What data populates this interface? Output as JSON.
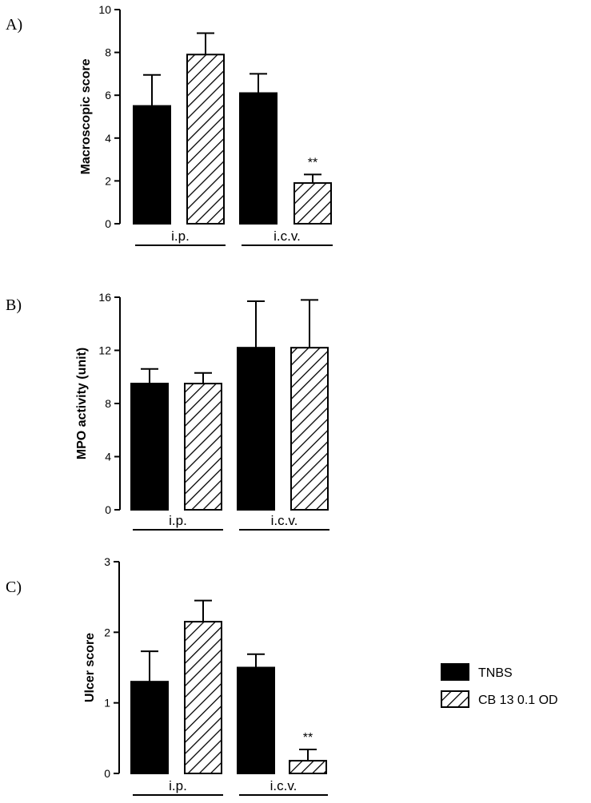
{
  "chart_data": [
    {
      "type": "bar",
      "panel_label": "A)",
      "ylabel": "Macroscopic score",
      "ylim": [
        0,
        10
      ],
      "yticks": [
        "0",
        "2",
        "4",
        "6",
        "8",
        "10"
      ],
      "groups": [
        "i.p.",
        "i.c.v."
      ],
      "series": [
        {
          "name": "TNBS",
          "values": [
            5.5,
            6.1
          ],
          "errors": [
            1.45,
            0.9
          ]
        },
        {
          "name": "CB 13 0.1 OD",
          "values": [
            7.9,
            1.9
          ],
          "errors": [
            1.0,
            0.4
          ]
        }
      ],
      "annotations": [
        {
          "text": "**",
          "group": 1,
          "series": 1
        }
      ]
    },
    {
      "type": "bar",
      "panel_label": "B)",
      "ylabel": "MPO activity (unit)",
      "ylim": [
        0,
        16
      ],
      "yticks": [
        "0",
        "4",
        "8",
        "12",
        "16"
      ],
      "groups": [
        "i.p.",
        "i.c.v."
      ],
      "series": [
        {
          "name": "TNBS",
          "values": [
            9.5,
            12.2
          ],
          "errors": [
            1.1,
            3.5
          ]
        },
        {
          "name": "CB 13 0.1 OD",
          "values": [
            9.5,
            12.2
          ],
          "errors": [
            0.8,
            3.6
          ]
        }
      ],
      "annotations": []
    },
    {
      "type": "bar",
      "panel_label": "C)",
      "ylabel": "Ulcer score",
      "ylim": [
        0,
        3
      ],
      "yticks": [
        "0",
        "1",
        "2",
        "3"
      ],
      "groups": [
        "i.p.",
        "i.c.v."
      ],
      "series": [
        {
          "name": "TNBS",
          "values": [
            1.3,
            1.5
          ],
          "errors": [
            0.43,
            0.19
          ]
        },
        {
          "name": "CB 13 0.1 OD",
          "values": [
            2.15,
            0.18
          ],
          "errors": [
            0.3,
            0.16
          ]
        }
      ],
      "annotations": [
        {
          "text": "**",
          "group": 1,
          "series": 1
        }
      ]
    }
  ],
  "legend": {
    "placement": "right",
    "items": [
      {
        "label": "TNBS",
        "fill": "solid"
      },
      {
        "label": "CB 13 0.1 OD",
        "fill": "hatched"
      }
    ]
  },
  "colors": {
    "bar_solid": "#000000",
    "hatch": "#000000",
    "background": "#ffffff"
  }
}
